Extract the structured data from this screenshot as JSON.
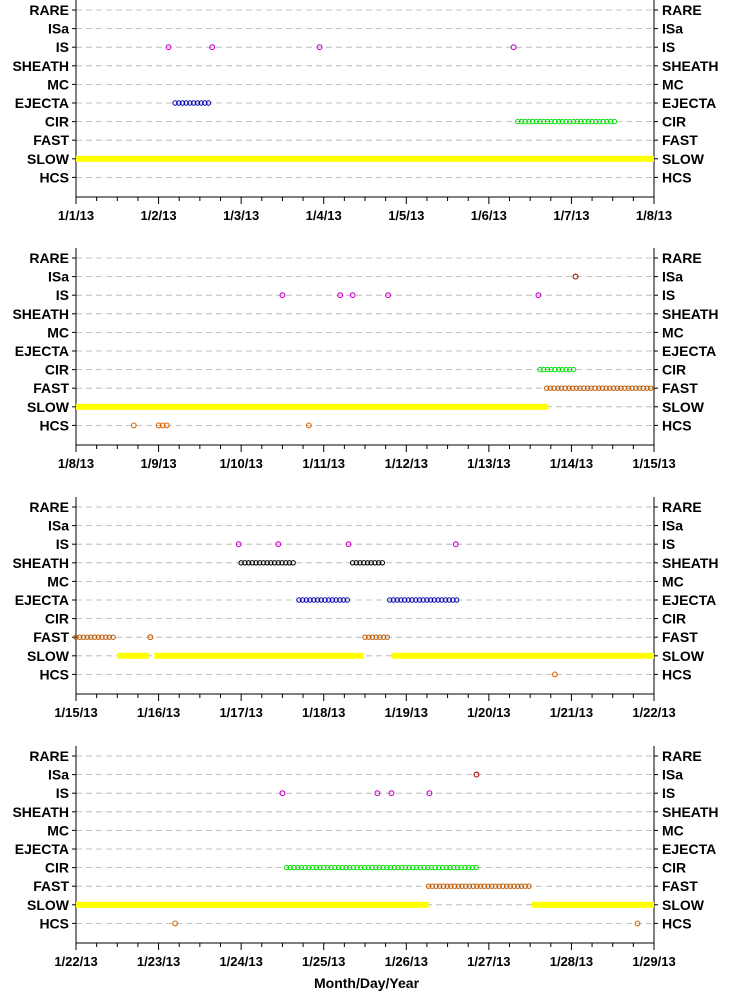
{
  "categories": [
    "RARE",
    "ISa",
    "IS",
    "SHEATH",
    "MC",
    "EJECTA",
    "CIR",
    "FAST",
    "SLOW",
    "HCS"
  ],
  "xlabel": "Month/Day/Year",
  "colors": {
    "ISa": "#b00000",
    "IS": "#cc00cc",
    "SHEATH": "#000000",
    "EJECTA": "#0000b0",
    "CIR": "#00dd00",
    "FAST": "#c05a00",
    "SLOW": "#ffff00",
    "HCS": "#dd6600",
    "grid": "#b0b0b0",
    "axis": "#000000"
  },
  "chart_data": [
    {
      "type": "scatter",
      "xlim": [
        0,
        7
      ],
      "x_ticks": [
        "1/1/13",
        "1/2/13",
        "1/3/13",
        "1/4/13",
        "1/5/13",
        "1/6/13",
        "1/7/13",
        "1/8/13"
      ],
      "series": [
        {
          "category": "IS",
          "points": [
            1.12,
            1.65,
            2.95,
            5.3
          ]
        },
        {
          "category": "EJECTA",
          "ranges": [
            [
              1.2,
              1.62
            ]
          ]
        },
        {
          "category": "CIR",
          "ranges": [
            [
              5.35,
              6.55
            ]
          ]
        },
        {
          "category": "SLOW",
          "ranges": [
            [
              0,
              7
            ]
          ]
        }
      ]
    },
    {
      "type": "scatter",
      "xlim": [
        0,
        7
      ],
      "x_ticks": [
        "1/8/13",
        "1/9/13",
        "1/10/13",
        "1/11/13",
        "1/12/13",
        "1/13/13",
        "1/14/13",
        "1/15/13"
      ],
      "series": [
        {
          "category": "ISa",
          "points": [
            6.05
          ]
        },
        {
          "category": "IS",
          "points": [
            2.5,
            3.2,
            3.35,
            3.78,
            5.6
          ]
        },
        {
          "category": "CIR",
          "ranges": [
            [
              5.62,
              6.03
            ]
          ]
        },
        {
          "category": "FAST",
          "ranges": [
            [
              5.7,
              7
            ]
          ]
        },
        {
          "category": "SLOW",
          "ranges": [
            [
              0,
              5.72
            ]
          ]
        },
        {
          "category": "HCS",
          "points": [
            0.7,
            1.0,
            1.05,
            1.1,
            2.82
          ]
        }
      ]
    },
    {
      "type": "scatter",
      "xlim": [
        0,
        7
      ],
      "x_ticks": [
        "1/15/13",
        "1/16/13",
        "1/17/13",
        "1/18/13",
        "1/19/13",
        "1/20/13",
        "1/21/13",
        "1/22/13"
      ],
      "series": [
        {
          "category": "IS",
          "points": [
            1.97,
            2.45,
            3.3,
            4.6
          ]
        },
        {
          "category": "SHEATH",
          "ranges": [
            [
              2.0,
              2.65
            ],
            [
              3.35,
              3.75
            ]
          ]
        },
        {
          "category": "EJECTA",
          "ranges": [
            [
              2.7,
              3.3
            ],
            [
              3.8,
              4.65
            ]
          ]
        },
        {
          "category": "FAST",
          "ranges": [
            [
              0,
              0.48
            ],
            [
              3.5,
              3.8
            ]
          ]
        },
        {
          "category": "FAST",
          "points": [
            0.9
          ]
        },
        {
          "category": "SLOW",
          "ranges": [
            [
              0.5,
              0.88
            ],
            [
              0.95,
              3.48
            ],
            [
              3.82,
              7
            ]
          ]
        },
        {
          "category": "HCS",
          "points": [
            5.8
          ]
        }
      ]
    },
    {
      "type": "scatter",
      "xlim": [
        0,
        7
      ],
      "x_ticks": [
        "1/22/13",
        "1/23/13",
        "1/24/13",
        "1/25/13",
        "1/26/13",
        "1/27/13",
        "1/28/13",
        "1/29/13"
      ],
      "series": [
        {
          "category": "ISa",
          "points": [
            4.85
          ]
        },
        {
          "category": "IS",
          "points": [
            2.5,
            3.65,
            3.82,
            4.28
          ]
        },
        {
          "category": "CIR",
          "ranges": [
            [
              2.55,
              4.85
            ]
          ]
        },
        {
          "category": "FAST",
          "ranges": [
            [
              4.27,
              5.5
            ]
          ]
        },
        {
          "category": "SLOW",
          "ranges": [
            [
              0,
              4.27
            ],
            [
              5.52,
              7
            ]
          ]
        },
        {
          "category": "HCS",
          "points": [
            1.2,
            6.8
          ]
        }
      ]
    }
  ]
}
